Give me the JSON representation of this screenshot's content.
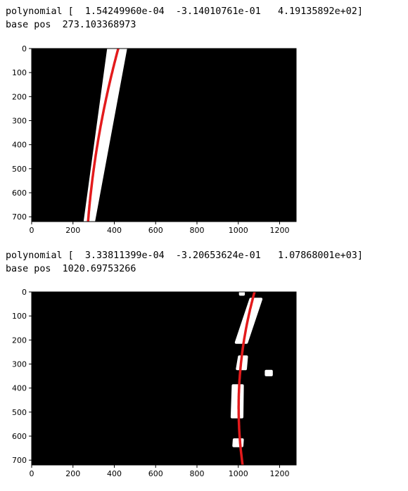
{
  "outputs": [
    {
      "polynomial_line": "polynomial [  1.54249960e-04  -3.14010761e-01   4.19135892e+02]",
      "base_pos_line": "base pos  273.103368973"
    },
    {
      "polynomial_line": "polynomial [  3.33811399e-04  -3.20653624e-01   1.07868001e+03]",
      "base_pos_line": "base pos  1020.69753266"
    }
  ],
  "chart_data": [
    {
      "type": "image",
      "title": "",
      "xlabel": "",
      "ylabel": "",
      "xlim": [
        0,
        1280
      ],
      "ylim": [
        720,
        0
      ],
      "x_ticks": [
        "0",
        "200",
        "400",
        "600",
        "800",
        "1000",
        "1200"
      ],
      "y_ticks": [
        "0",
        "100",
        "200",
        "300",
        "400",
        "500",
        "600",
        "700"
      ],
      "background_color": "#000000",
      "pixel_color": "#ffffff",
      "fit_color": "#e31a1c",
      "fit_coefficients": [
        0.00015424996,
        -0.314010761,
        419.135892
      ],
      "base_pos": 273.103368973,
      "pixel_regions": [
        {
          "y": [
            0,
            720
          ],
          "x_top": [
            372,
            455
          ],
          "x_bottom": [
            258,
            300
          ]
        }
      ]
    },
    {
      "type": "image",
      "title": "",
      "xlabel": "",
      "ylabel": "",
      "xlim": [
        0,
        1280
      ],
      "ylim": [
        720,
        0
      ],
      "x_ticks": [
        "0",
        "200",
        "400",
        "600",
        "800",
        "1000",
        "1200"
      ],
      "y_ticks": [
        "0",
        "100",
        "200",
        "300",
        "400",
        "500",
        "600",
        "700"
      ],
      "background_color": "#000000",
      "pixel_color": "#ffffff",
      "fit_color": "#e31a1c",
      "fit_coefficients": [
        0.000333811399,
        -0.320653624,
        1078.68001
      ],
      "base_pos": 1020.69753266,
      "pixel_regions": [
        {
          "y": [
            30,
            210
          ],
          "x_top": [
            1060,
            1110
          ],
          "x_bottom": [
            990,
            1040
          ]
        },
        {
          "y": [
            270,
            320
          ],
          "x_top": [
            1005,
            1040
          ],
          "x_bottom": [
            995,
            1035
          ]
        },
        {
          "y": [
            330,
            345
          ],
          "x_top": [
            1135,
            1160
          ],
          "x_bottom": [
            1135,
            1160
          ]
        },
        {
          "y": [
            390,
            520
          ],
          "x_top": [
            975,
            1020
          ],
          "x_bottom": [
            970,
            1018
          ]
        },
        {
          "y": [
            615,
            640
          ],
          "x_top": [
            980,
            1020
          ],
          "x_bottom": [
            978,
            1018
          ]
        },
        {
          "y": [
            0,
            10
          ],
          "x_top": [
            1010,
            1025
          ],
          "x_bottom": [
            1010,
            1025
          ]
        }
      ]
    }
  ]
}
